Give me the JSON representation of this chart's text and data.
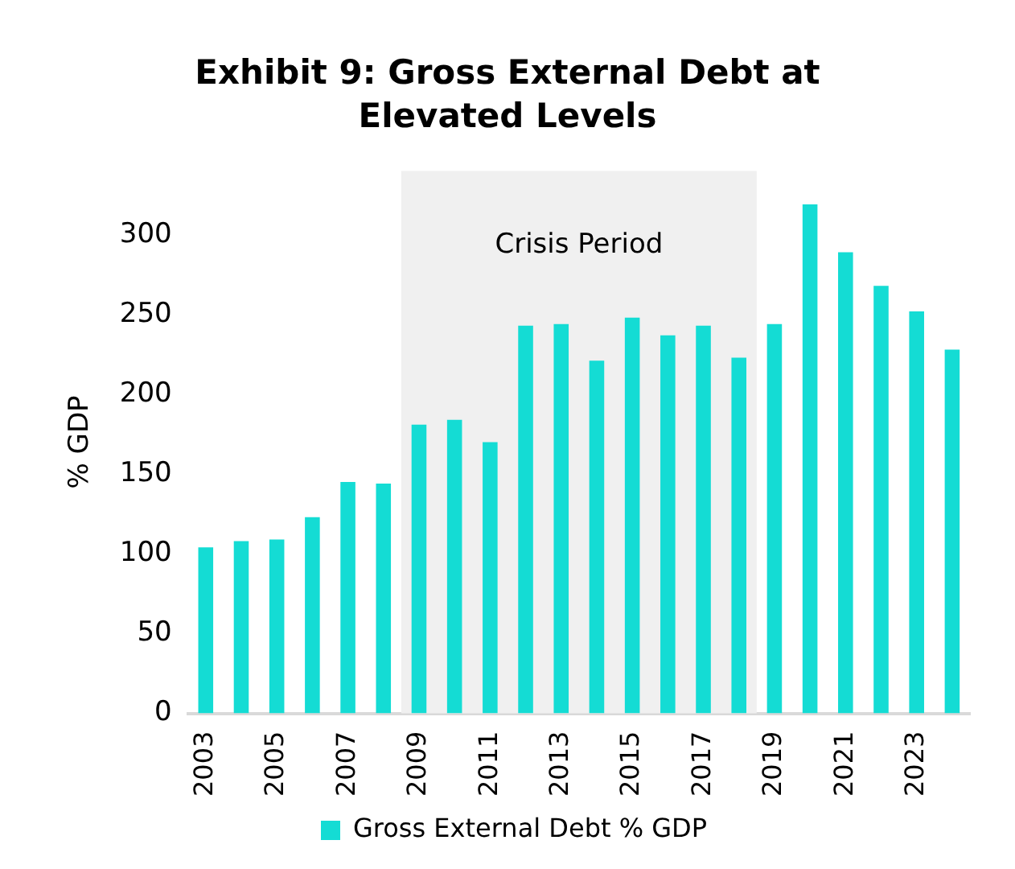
{
  "chart_data": {
    "type": "bar",
    "title": "Exhibit 9: Gross External Debt at Elevated Levels",
    "ylabel": "% GDP",
    "x": [
      2003,
      2004,
      2005,
      2006,
      2007,
      2008,
      2009,
      2010,
      2011,
      2012,
      2013,
      2014,
      2015,
      2016,
      2017,
      2018,
      2019,
      2020,
      2021,
      2022,
      2023,
      2024
    ],
    "series": [
      {
        "name": "Gross External Debt % GDP",
        "color": "#14dcd4",
        "values": [
          104,
          108,
          109,
          123,
          145,
          144,
          181,
          184,
          170,
          243,
          244,
          221,
          248,
          237,
          243,
          223,
          244,
          319,
          289,
          268,
          252,
          228
        ]
      }
    ],
    "xlim": [
      2002.5,
      2024.5
    ],
    "xticks": [
      2003,
      2005,
      2007,
      2009,
      2011,
      2013,
      2015,
      2017,
      2019,
      2021,
      2023
    ],
    "ylim": [
      0,
      340
    ],
    "yticks": [
      0,
      50,
      100,
      150,
      200,
      250,
      300
    ],
    "bands": [
      {
        "axis": "x",
        "from": 2008.5,
        "to": 2018.5,
        "label": "Crisis Period",
        "color": "#f0f0f0"
      }
    ],
    "legend": "bottom",
    "grid": false
  }
}
